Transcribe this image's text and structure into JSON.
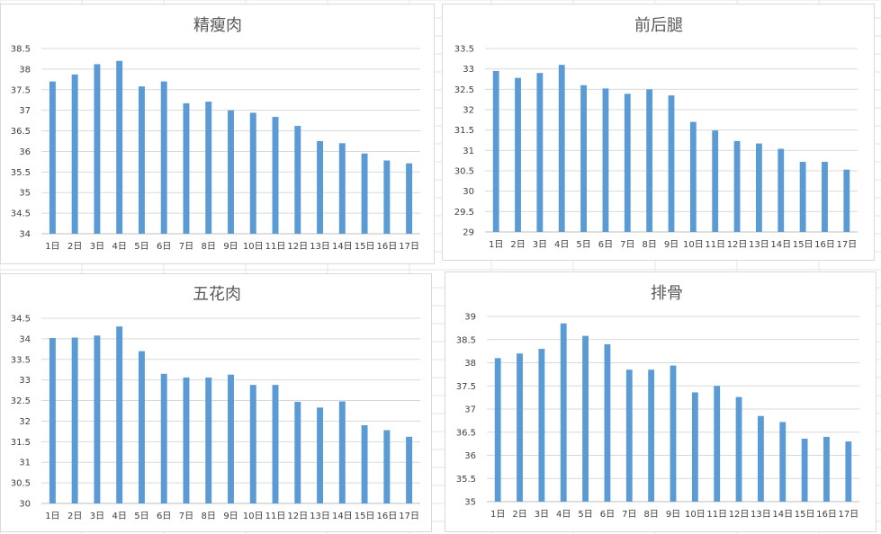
{
  "colors": {
    "bar": "#5b9bd5",
    "grid": "#d9d9d9",
    "text": "#404040",
    "title": "#595959"
  },
  "chart_data": [
    {
      "id": "lean-pork",
      "type": "bar",
      "title": "精瘦肉",
      "categories": [
        "1日",
        "2日",
        "3日",
        "4日",
        "5日",
        "6日",
        "7日",
        "8日",
        "9日",
        "10日",
        "11日",
        "12日",
        "13日",
        "14日",
        "15日",
        "16日",
        "17日"
      ],
      "values": [
        37.7,
        37.87,
        38.12,
        38.2,
        37.58,
        37.7,
        37.17,
        37.21,
        37.0,
        36.94,
        36.84,
        36.62,
        36.25,
        36.2,
        35.95,
        35.78,
        35.71
      ],
      "ylim": [
        34,
        38.5
      ],
      "yticks": [
        "34",
        "34.5",
        "35",
        "35.5",
        "36",
        "36.5",
        "37",
        "37.5",
        "38",
        "38.5"
      ],
      "grid": true,
      "xlabel": "",
      "ylabel": ""
    },
    {
      "id": "leg-pork",
      "type": "bar",
      "title": "前后腿",
      "categories": [
        "1日",
        "2日",
        "3日",
        "4日",
        "5日",
        "6日",
        "7日",
        "8日",
        "9日",
        "10日",
        "11日",
        "12日",
        "13日",
        "14日",
        "15日",
        "16日",
        "17日"
      ],
      "values": [
        32.95,
        32.78,
        32.9,
        33.1,
        32.6,
        32.52,
        32.39,
        32.5,
        32.35,
        31.7,
        31.49,
        31.23,
        31.17,
        31.04,
        30.72,
        30.72,
        30.53
      ],
      "ylim": [
        29,
        33.5
      ],
      "yticks": [
        "29",
        "29.5",
        "30",
        "30.5",
        "31",
        "31.5",
        "32",
        "32.5",
        "33",
        "33.5"
      ],
      "grid": true,
      "xlabel": "",
      "ylabel": ""
    },
    {
      "id": "pork-belly",
      "type": "bar",
      "title": "五花肉",
      "categories": [
        "1日",
        "2日",
        "3日",
        "4日",
        "5日",
        "6日",
        "7日",
        "8日",
        "9日",
        "10日",
        "11日",
        "12日",
        "13日",
        "14日",
        "15日",
        "16日",
        "17日"
      ],
      "values": [
        34.02,
        34.03,
        34.08,
        34.3,
        33.7,
        33.15,
        33.06,
        33.06,
        33.13,
        32.88,
        32.88,
        32.47,
        32.33,
        32.48,
        31.9,
        31.78,
        31.62
      ],
      "ylim": [
        30,
        34.5
      ],
      "yticks": [
        "30",
        "30.5",
        "31",
        "31.5",
        "32",
        "32.5",
        "33",
        "33.5",
        "34",
        "34.5"
      ],
      "grid": true,
      "xlabel": "",
      "ylabel": ""
    },
    {
      "id": "ribs",
      "type": "bar",
      "title": "排骨",
      "categories": [
        "1日",
        "2日",
        "3日",
        "4日",
        "5日",
        "6日",
        "7日",
        "8日",
        "9日",
        "10日",
        "11日",
        "12日",
        "13日",
        "14日",
        "15日",
        "16日",
        "17日"
      ],
      "values": [
        38.1,
        38.2,
        38.3,
        38.85,
        38.58,
        38.4,
        37.85,
        37.85,
        37.94,
        37.36,
        37.5,
        37.26,
        36.85,
        36.72,
        36.36,
        36.4,
        36.3
      ],
      "ylim": [
        35,
        39
      ],
      "yticks": [
        "35",
        "35.5",
        "36",
        "36.5",
        "37",
        "37.5",
        "38",
        "38.5",
        "39"
      ],
      "grid": true,
      "xlabel": "",
      "ylabel": ""
    }
  ]
}
